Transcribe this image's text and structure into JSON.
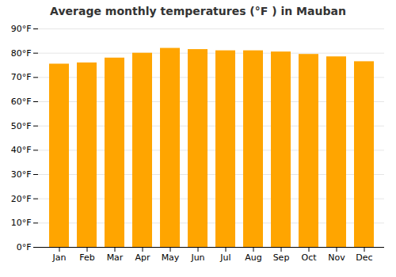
{
  "chart_data": {
    "type": "bar",
    "title": "Average monthly temperatures (°F ) in Mauban",
    "categories": [
      "Jan",
      "Feb",
      "Mar",
      "Apr",
      "May",
      "Jun",
      "Jul",
      "Aug",
      "Sep",
      "Oct",
      "Nov",
      "Dec"
    ],
    "values": [
      75.5,
      76.0,
      78.0,
      80.0,
      82.0,
      81.5,
      81.0,
      81.0,
      80.5,
      79.5,
      78.5,
      76.5
    ],
    "color": "#FFA500",
    "ylim": [
      0,
      90
    ],
    "yticks": [
      {
        "value": 0,
        "label": "0°F"
      },
      {
        "value": 10,
        "label": "10°F"
      },
      {
        "value": 20,
        "label": "20°F"
      },
      {
        "value": 30,
        "label": "30°F"
      },
      {
        "value": 40,
        "label": "40°F"
      },
      {
        "value": 50,
        "label": "50°F"
      },
      {
        "value": 60,
        "label": "60°F"
      },
      {
        "value": 70,
        "label": "70°F"
      },
      {
        "value": 80,
        "label": "80°F"
      },
      {
        "value": 90,
        "label": "90°F"
      }
    ],
    "grid": true
  }
}
